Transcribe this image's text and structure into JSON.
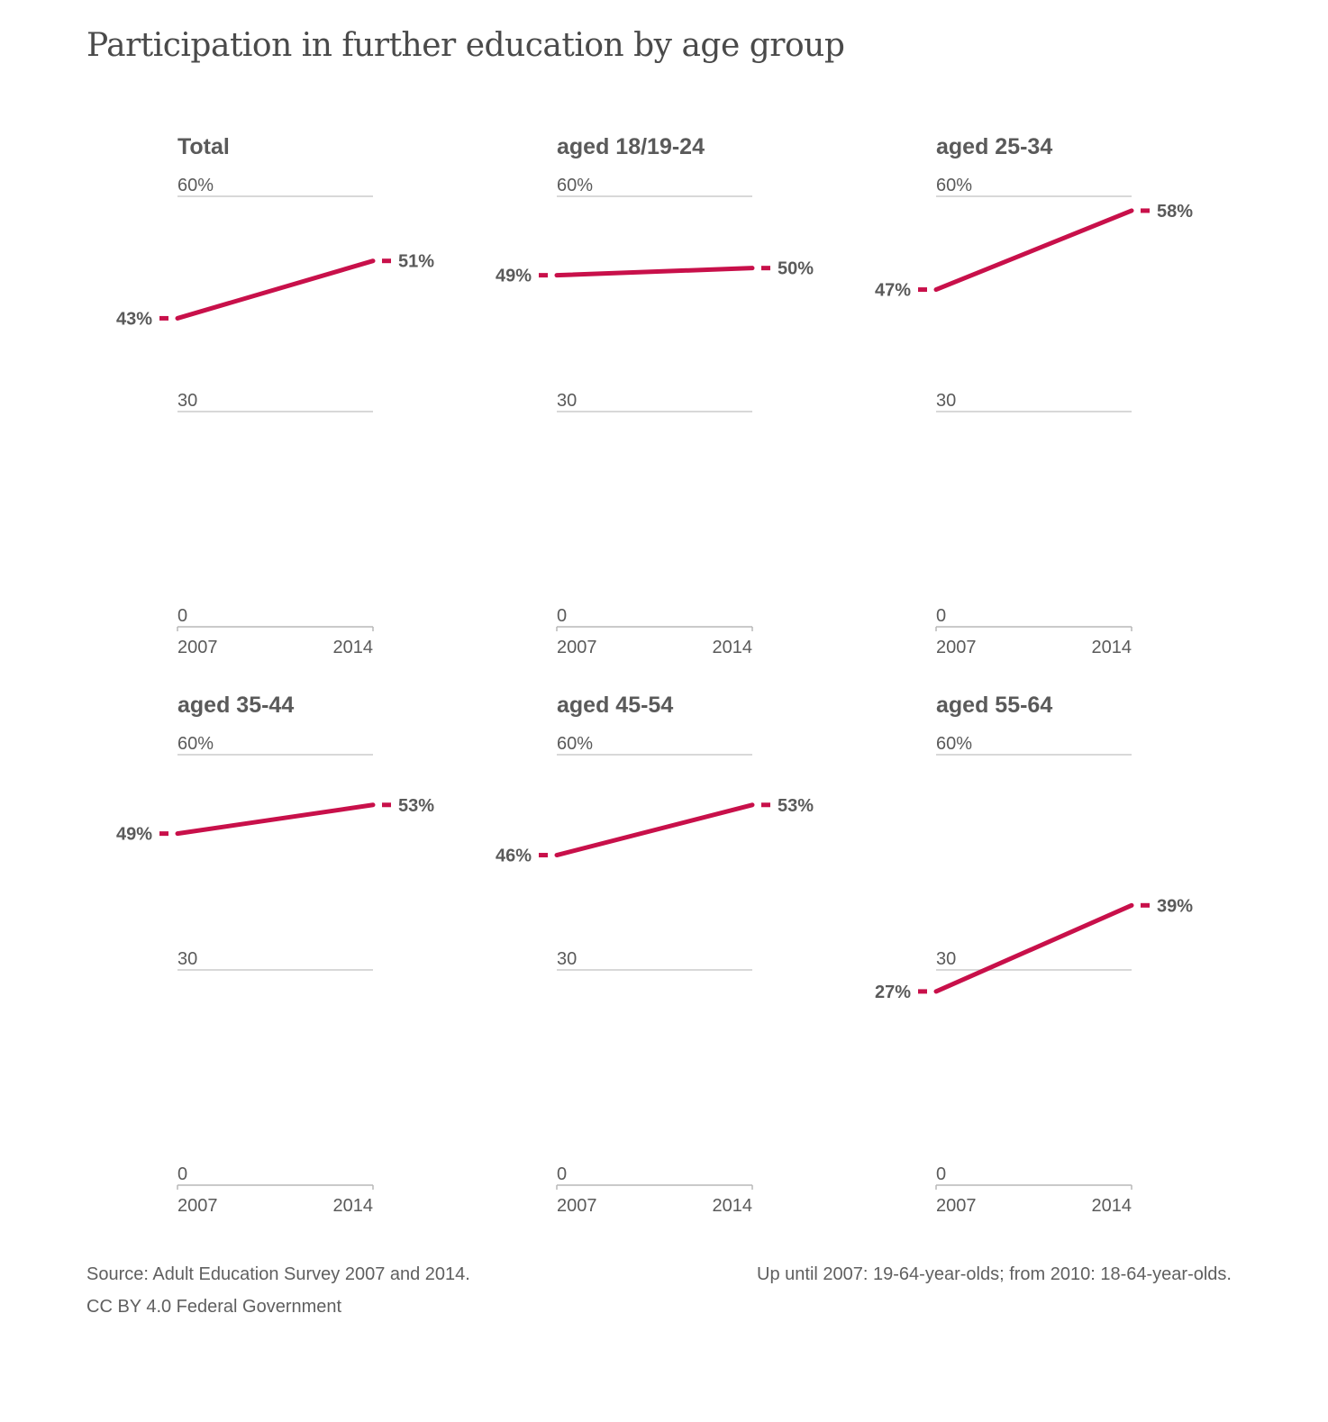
{
  "title": "Participation in further education by age group",
  "colors": {
    "line": "#c8104a",
    "grid": "#cccccc",
    "axis": "#b8b8b8",
    "text": "#5a5a5a"
  },
  "chart_data": [
    {
      "type": "line",
      "title": "Total",
      "x": [
        "2007",
        "2014"
      ],
      "values": [
        43,
        51
      ],
      "value_labels": [
        "43%",
        "51%"
      ],
      "y_ticks": [
        "60%",
        "30",
        "0"
      ],
      "ylim": [
        0,
        60
      ],
      "grid": true
    },
    {
      "type": "line",
      "title": "aged 18/19-24",
      "x": [
        "2007",
        "2014"
      ],
      "values": [
        49,
        50
      ],
      "value_labels": [
        "49%",
        "50%"
      ],
      "y_ticks": [
        "60%",
        "30",
        "0"
      ],
      "ylim": [
        0,
        60
      ],
      "grid": true
    },
    {
      "type": "line",
      "title": "aged 25-34",
      "x": [
        "2007",
        "2014"
      ],
      "values": [
        47,
        58
      ],
      "value_labels": [
        "47%",
        "58%"
      ],
      "y_ticks": [
        "60%",
        "30",
        "0"
      ],
      "ylim": [
        0,
        60
      ],
      "grid": true
    },
    {
      "type": "line",
      "title": "aged 35-44",
      "x": [
        "2007",
        "2014"
      ],
      "values": [
        49,
        53
      ],
      "value_labels": [
        "49%",
        "53%"
      ],
      "y_ticks": [
        "60%",
        "30",
        "0"
      ],
      "ylim": [
        0,
        60
      ],
      "grid": true
    },
    {
      "type": "line",
      "title": "aged 45-54",
      "x": [
        "2007",
        "2014"
      ],
      "values": [
        46,
        53
      ],
      "value_labels": [
        "46%",
        "53%"
      ],
      "y_ticks": [
        "60%",
        "30",
        "0"
      ],
      "ylim": [
        0,
        60
      ],
      "grid": true
    },
    {
      "type": "line",
      "title": "aged 55-64",
      "x": [
        "2007",
        "2014"
      ],
      "values": [
        27,
        39
      ],
      "value_labels": [
        "27%",
        "39%"
      ],
      "y_ticks": [
        "60%",
        "30",
        "0"
      ],
      "ylim": [
        0,
        60
      ],
      "grid": true
    }
  ],
  "footer": {
    "source": "Source: Adult Education Survey 2007 and 2014.",
    "license": "CC BY 4.0 Federal Government",
    "note": "Up until 2007: 19-64-year-olds; from 2010: 18-64-year-olds."
  }
}
